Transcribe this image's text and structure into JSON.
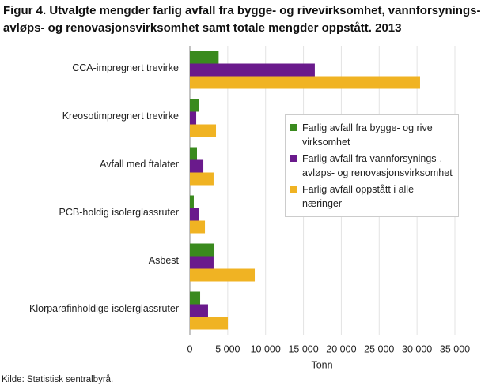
{
  "chart_data": {
    "type": "hbar",
    "title": [
      "Figur 4. Utvalgte mengder farlig avfall fra bygge- og rivevirksomhet, vannforsynings-",
      "avløps- og renovasjonsvirksomhet samt totale mengder oppstått. 2013"
    ],
    "x_label": "Tonn",
    "source": "Kilde: Statistisk sentralbyrå.",
    "categories": [
      "CCA-impregnert trevirke",
      "Kreosotimpregnert trevirke",
      "Avfall med ftalater",
      "PCB-holdig isolerglassruter",
      "Asbest",
      "Klorparafinholdige isolerglassruter"
    ],
    "series": [
      {
        "name": "Farlig avfall fra bygge- og rive virksomhet",
        "color": "#3a8a1e",
        "values": [
          3800,
          1150,
          940,
          520,
          3240,
          1360
        ]
      },
      {
        "name": "Farlig avfall fra vannforsynings-, avløps- og renovasjonsvirksomhet",
        "color": "#6a1a8c",
        "values": [
          16500,
          840,
          1780,
          1150,
          3130,
          2400
        ]
      },
      {
        "name": "Farlig avfall oppstått i alle næringer",
        "color": "#f0b323",
        "values": [
          30400,
          3450,
          3130,
          1990,
          8570,
          5020
        ]
      }
    ],
    "xlim": [
      0,
      35000
    ],
    "xticks": [
      0,
      {
        "value": 5000,
        "label": "5 000"
      },
      {
        "value": 10000,
        "label": "10 000"
      },
      {
        "value": 15000,
        "label": "15 000"
      },
      {
        "value": 20000,
        "label": "20 000"
      },
      {
        "value": 25000,
        "label": "25 000"
      },
      {
        "value": 30000,
        "label": "30 000"
      },
      {
        "value": 35000,
        "label": "35 000"
      }
    ],
    "grid": true
  }
}
